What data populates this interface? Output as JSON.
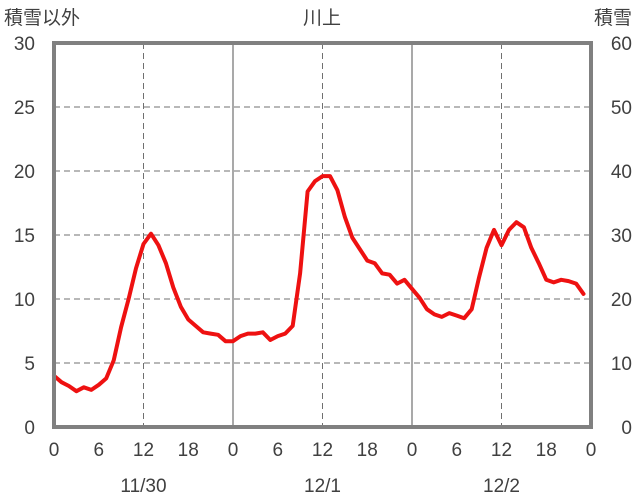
{
  "chart_data": {
    "type": "line",
    "title": "川上",
    "ylabel_left": "積雪以外",
    "ylabel_right": "積雪",
    "ylim_left": [
      0,
      30
    ],
    "ylim_right": [
      0,
      60
    ],
    "yticks_left": [
      "0",
      "5",
      "10",
      "15",
      "20",
      "25",
      "30"
    ],
    "yticks_right": [
      "0",
      "10",
      "20",
      "30",
      "40",
      "50",
      "60"
    ],
    "xlim": [
      0,
      72
    ],
    "x_tick_labels": [
      "0",
      "6",
      "12",
      "18",
      "0",
      "6",
      "12",
      "18",
      "0",
      "6",
      "12",
      "18",
      "0"
    ],
    "day_labels": [
      {
        "x": 12,
        "label": "11/30"
      },
      {
        "x": 36,
        "label": "12/1"
      },
      {
        "x": 60,
        "label": "12/2"
      }
    ],
    "grid": "dashed at 12h and 24h",
    "colors": {
      "temperature": "#ee1111",
      "snow_depth": "#7030a0",
      "frame": "#808080",
      "grid": "#707070"
    },
    "series": [
      {
        "axis": "left",
        "color": "#ee1111",
        "x": [
          0,
          1,
          2,
          3,
          4,
          5,
          6,
          7,
          8,
          9,
          10,
          11,
          12,
          13,
          14,
          15,
          16,
          17,
          18,
          19,
          20,
          21,
          22,
          23,
          24,
          25,
          26,
          27,
          28,
          29,
          30,
          31,
          32,
          33,
          34,
          35,
          36,
          37,
          38,
          39,
          40,
          41,
          42,
          43,
          44,
          45,
          46,
          47,
          48,
          49,
          50,
          51,
          52,
          53,
          54,
          55,
          56,
          57,
          58,
          59,
          60,
          61,
          62,
          63,
          64,
          65,
          66,
          67,
          68,
          69,
          70,
          71
        ],
        "values": [
          4.0,
          3.5,
          3.2,
          2.8,
          3.1,
          2.9,
          3.3,
          3.8,
          5.2,
          7.8,
          10.0,
          12.4,
          14.3,
          15.1,
          14.2,
          12.8,
          10.9,
          9.4,
          8.4,
          7.9,
          7.4,
          7.3,
          7.2,
          6.7,
          6.7,
          7.1,
          7.3,
          7.3,
          7.4,
          6.8,
          7.1,
          7.3,
          7.9,
          12.0,
          18.4,
          19.2,
          19.6,
          19.6,
          18.5,
          16.4,
          14.8,
          13.9,
          13.0,
          12.8,
          12.0,
          11.9,
          11.2,
          11.5,
          10.8,
          10.1,
          9.2,
          8.8,
          8.6,
          8.9,
          8.7,
          8.5,
          9.2,
          11.7,
          14.0,
          15.4,
          14.2,
          15.4,
          16.0,
          15.6,
          14.0,
          12.8,
          11.5,
          11.3,
          11.5,
          11.4,
          11.2,
          10.4
        ]
      },
      {
        "axis": "right",
        "color": "#7030a0",
        "x": [
          0,
          72
        ],
        "values": [
          0,
          0
        ]
      }
    ]
  }
}
